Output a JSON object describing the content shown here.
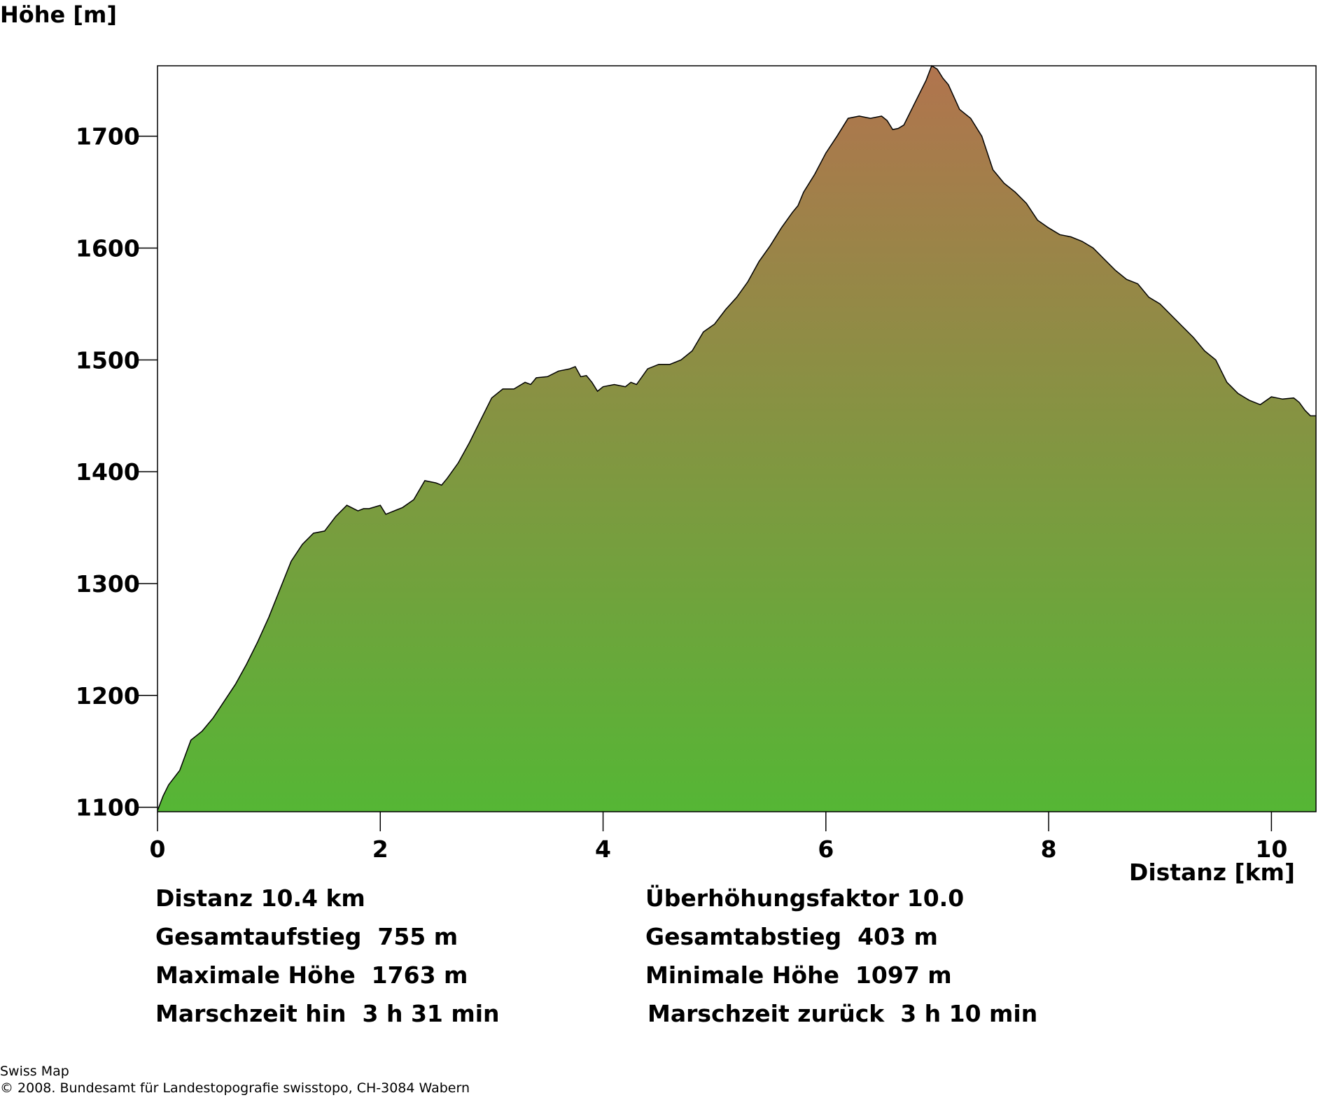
{
  "chart_data": {
    "type": "area",
    "ylabel": "Höhe [m]",
    "xlabel": "Distanz [km]",
    "xlim": [
      0,
      10.4
    ],
    "ylim": [
      1096,
      1763
    ],
    "x_ticks": [
      "0",
      "2",
      "4",
      "6",
      "8",
      "10"
    ],
    "y_ticks": [
      "1100",
      "1200",
      "1300",
      "1400",
      "1500",
      "1600",
      "1700"
    ],
    "grid": false,
    "colors": {
      "low": "#55b635",
      "high": "#b1744e",
      "outline": "#000000"
    },
    "series": [
      {
        "x": [
          0,
          0.05,
          0.1,
          0.2,
          0.3,
          0.35,
          0.4,
          0.5,
          0.6,
          0.7,
          0.8,
          0.9,
          1.0,
          1.1,
          1.2,
          1.3,
          1.4,
          1.5,
          1.6,
          1.7,
          1.8,
          1.85,
          1.9,
          2.0,
          2.05,
          2.1,
          2.15,
          2.2,
          2.3,
          2.4,
          2.5,
          2.55,
          2.6,
          2.7,
          2.8,
          2.9,
          3.0,
          3.1,
          3.2,
          3.3,
          3.35,
          3.4,
          3.5,
          3.6,
          3.7,
          3.75,
          3.8,
          3.85,
          3.9,
          3.95,
          4.0,
          4.1,
          4.2,
          4.25,
          4.3,
          4.4,
          4.5,
          4.6,
          4.7,
          4.8,
          4.9,
          5.0,
          5.1,
          5.2,
          5.3,
          5.4,
          5.5,
          5.6,
          5.7,
          5.75,
          5.8,
          5.9,
          6.0,
          6.1,
          6.2,
          6.3,
          6.4,
          6.5,
          6.55,
          6.6,
          6.65,
          6.7,
          6.8,
          6.9,
          6.95,
          7.0,
          7.05,
          7.1,
          7.2,
          7.25,
          7.3,
          7.4,
          7.5,
          7.6,
          7.7,
          7.8,
          7.9,
          8.0,
          8.1,
          8.2,
          8.3,
          8.4,
          8.5,
          8.6,
          8.7,
          8.8,
          8.9,
          9.0,
          9.1,
          9.2,
          9.3,
          9.4,
          9.5,
          9.6,
          9.7,
          9.8,
          9.9,
          10.0,
          10.05,
          10.1,
          10.2,
          10.25,
          10.3,
          10.35,
          10.4
        ],
        "y": [
          1097,
          1110,
          1120,
          1133,
          1160,
          1164,
          1168,
          1180,
          1195,
          1210,
          1228,
          1248,
          1270,
          1295,
          1320,
          1335,
          1345,
          1347,
          1360,
          1370,
          1365,
          1367,
          1367,
          1370,
          1362,
          1364,
          1366,
          1368,
          1375,
          1392,
          1390,
          1388,
          1394,
          1408,
          1426,
          1446,
          1466,
          1474,
          1474,
          1480,
          1478,
          1484,
          1485,
          1490,
          1492,
          1494,
          1485,
          1486,
          1480,
          1472,
          1476,
          1478,
          1476,
          1480,
          1478,
          1492,
          1496,
          1496,
          1500,
          1508,
          1525,
          1532,
          1545,
          1556,
          1570,
          1588,
          1602,
          1618,
          1632,
          1638,
          1650,
          1666,
          1685,
          1700,
          1716,
          1718,
          1716,
          1718,
          1714,
          1706,
          1707,
          1710,
          1730,
          1750,
          1763,
          1760,
          1752,
          1746,
          1724,
          1720,
          1716,
          1700,
          1670,
          1658,
          1650,
          1640,
          1625,
          1618,
          1612,
          1610,
          1606,
          1600,
          1590,
          1580,
          1572,
          1568,
          1556,
          1550,
          1540,
          1530,
          1520,
          1508,
          1500,
          1480,
          1470,
          1464,
          1460,
          1467,
          1466,
          1465,
          1466,
          1462,
          1455,
          1450,
          1450
        ]
      }
    ]
  },
  "stats": {
    "distance": "Distanz 10.4 km",
    "exaggeration": "Überhöhungsfaktor 10.0",
    "ascent": "Gesamtaufstieg  755 m",
    "descent": "Gesamtabstieg  403 m",
    "max_height": "Maximale Höhe  1763 m",
    "min_height": "Minimale Höhe  1097 m",
    "time_out": "Marschzeit hin  3 h 31 min",
    "time_back": "Marschzeit zurück  3 h 10 min"
  },
  "footer": {
    "line1": "Swiss Map",
    "line2": "© 2008. Bundesamt für Landestopografie swisstopo, CH-3084 Wabern"
  }
}
